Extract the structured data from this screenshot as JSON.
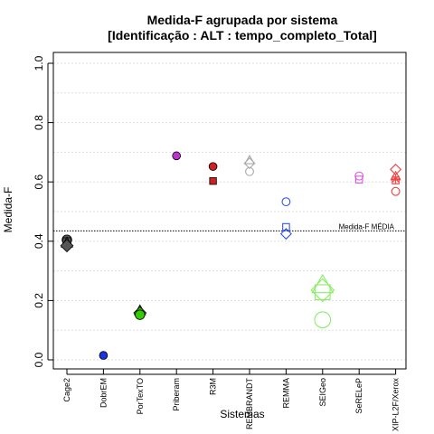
{
  "chart_data": {
    "type": "scatter",
    "title": "Medida-F agrupada por sistema",
    "subtitle": "[Identificação : ALT : tempo_completo_Total]",
    "xlabel": "Sistemas",
    "ylabel": "Medida-F",
    "ylim": [
      0.0,
      1.0
    ],
    "yticks": [
      "0.0",
      "0.2",
      "0.4",
      "0.6",
      "0.8",
      "1.0"
    ],
    "grid": true,
    "categories": [
      "Cage2",
      "DobrEM",
      "PorTexTO",
      "Priberam",
      "R3M",
      "REMBRANDT",
      "REMMA",
      "SEIGeo",
      "SeRELeP",
      "XIP-L2F/Xerox"
    ],
    "reference_line": {
      "value": 0.435,
      "label": "Medida-F MÉDIA"
    },
    "series": [
      {
        "category": "Cage2",
        "color": "#555555",
        "points": [
          {
            "y": 0.405,
            "marker": "circle",
            "filled": true,
            "size": 1.2
          },
          {
            "y": 0.398,
            "marker": "square",
            "filled": true,
            "size": 1.2
          },
          {
            "y": 0.393,
            "marker": "triangle",
            "filled": true,
            "size": 1.2
          },
          {
            "y": 0.385,
            "marker": "diamond",
            "filled": true,
            "size": 1.2
          }
        ]
      },
      {
        "category": "DobrEM",
        "color": "#1a33e6",
        "points": [
          {
            "y": 0.015,
            "marker": "circle",
            "filled": true,
            "size": 1.0
          }
        ]
      },
      {
        "category": "PorTexTO",
        "color": "#33cc00",
        "points": [
          {
            "y": 0.165,
            "marker": "triangle",
            "filled": true,
            "size": 1.2
          },
          {
            "y": 0.158,
            "marker": "diamond",
            "filled": true,
            "size": 1.2
          },
          {
            "y": 0.152,
            "marker": "circle",
            "filled": true,
            "size": 1.2
          }
        ]
      },
      {
        "category": "Priberam",
        "color": "#bb33cc",
        "points": [
          {
            "y": 0.688,
            "marker": "circle",
            "filled": true,
            "size": 1.0
          }
        ]
      },
      {
        "category": "R3M",
        "color": "#cc2222",
        "points": [
          {
            "y": 0.652,
            "marker": "circle",
            "filled": true,
            "size": 1.0
          },
          {
            "y": 0.603,
            "marker": "square",
            "filled": true,
            "size": 1.0
          }
        ]
      },
      {
        "category": "REMBRANDT",
        "color": "#aaaaaa",
        "points": [
          {
            "y": 0.672,
            "marker": "triangle",
            "filled": false,
            "size": 1.0
          },
          {
            "y": 0.663,
            "marker": "diamond",
            "filled": false,
            "size": 1.0
          },
          {
            "y": 0.635,
            "marker": "circle",
            "filled": false,
            "size": 1.0
          }
        ]
      },
      {
        "category": "REMMA",
        "color": "#3355ee",
        "points": [
          {
            "y": 0.533,
            "marker": "circle",
            "filled": false,
            "size": 1.0
          },
          {
            "y": 0.448,
            "marker": "square",
            "filled": false,
            "size": 1.0
          },
          {
            "y": 0.425,
            "marker": "diamond",
            "filled": false,
            "size": 1.0
          }
        ]
      },
      {
        "category": "SEIGeo",
        "color": "#88ee66",
        "points": [
          {
            "y": 0.25,
            "marker": "triangle",
            "filled": false,
            "size": 2.2
          },
          {
            "y": 0.235,
            "marker": "diamond",
            "filled": false,
            "size": 2.2
          },
          {
            "y": 0.228,
            "marker": "square",
            "filled": false,
            "size": 2.2
          },
          {
            "y": 0.135,
            "marker": "circle",
            "filled": false,
            "size": 2.0
          }
        ]
      },
      {
        "category": "SeRELeP",
        "color": "#dd55dd",
        "points": [
          {
            "y": 0.62,
            "marker": "circle",
            "filled": false,
            "size": 1.0
          },
          {
            "y": 0.608,
            "marker": "square",
            "filled": false,
            "size": 1.0
          }
        ]
      },
      {
        "category": "XIP-L2F/Xerox",
        "color": "#ee4444",
        "points": [
          {
            "y": 0.642,
            "marker": "diamond",
            "filled": false,
            "size": 1.0
          },
          {
            "y": 0.618,
            "marker": "triangle",
            "filled": false,
            "size": 1.0
          },
          {
            "y": 0.61,
            "marker": "star",
            "filled": false,
            "size": 1.0
          },
          {
            "y": 0.605,
            "marker": "square",
            "filled": false,
            "size": 1.0
          },
          {
            "y": 0.568,
            "marker": "circle",
            "filled": false,
            "size": 1.0
          }
        ]
      }
    ]
  }
}
